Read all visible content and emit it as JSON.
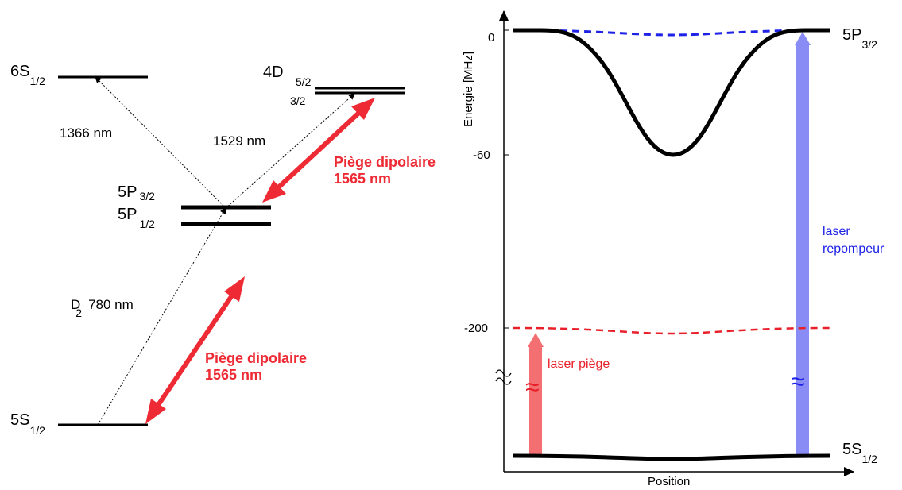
{
  "colors": {
    "trap": "#ee2a34",
    "repump": "#8a8cf5",
    "trap_beam": "#f46f72",
    "blue_dash": "#1d22e6",
    "red_dash": "#e8202a",
    "black": "#000000"
  },
  "left": {
    "levels": {
      "s6": {
        "main": "6S",
        "sub": "1/2"
      },
      "d4": {
        "main": "4D",
        "sub1": "5/2",
        "sub2": "3/2"
      },
      "p32": {
        "main": "5P",
        "sub": "3/2"
      },
      "p12": {
        "main": "5P",
        "sub": "1/2"
      },
      "s5": {
        "main": "5S",
        "sub": "1/2"
      }
    },
    "transitions": {
      "t1366": "1366 nm",
      "t1529": "1529 nm",
      "d2_main": "D",
      "d2_sub": "2",
      "d2_nm": "780 nm"
    },
    "trap_top": {
      "line1": "Piège dipolaire",
      "line2": "1565 nm"
    },
    "trap_bottom": {
      "line1": "Piège dipolaire",
      "line2": "1565 nm"
    }
  },
  "right": {
    "ylabel": "Energie [MHz]",
    "xlabel": "Position",
    "ticks": {
      "t0": "0",
      "t60": "-60",
      "t200": "-200"
    },
    "levels": {
      "p32": {
        "main": "5P",
        "sub": "3/2"
      },
      "s5": {
        "main": "5S",
        "sub": "1/2"
      }
    },
    "laser_piege": "laser piège",
    "laser_repompeur_1": "laser",
    "laser_repompeur_2": "repompeur",
    "approx": "≈"
  }
}
